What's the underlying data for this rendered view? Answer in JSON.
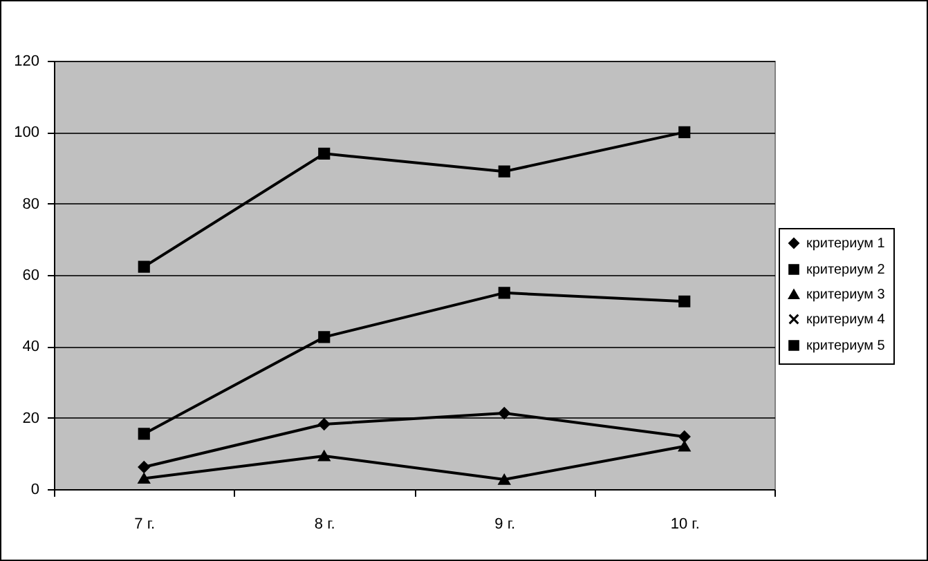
{
  "chart_data": {
    "type": "line",
    "categories": [
      "7 г.",
      "8 г.",
      "9 г.",
      "10 г."
    ],
    "series": [
      {
        "name": "критериум 1",
        "color": "#000000",
        "marker": "diamond",
        "values": [
          6.2,
          18.2,
          21.3,
          14.7
        ]
      },
      {
        "name": "критериум 2",
        "color": "#000000",
        "marker": "square",
        "values": [
          15.5,
          42.6,
          55,
          52.6
        ]
      },
      {
        "name": "критериум 3",
        "color": "#000000",
        "marker": "triangle",
        "values": [
          3,
          9.3,
          2.7,
          12
        ]
      },
      {
        "name": "критериум 4",
        "color": "#000000",
        "marker": "cross",
        "values": [
          null,
          null,
          null,
          null
        ]
      },
      {
        "name": "критериум 5",
        "color": "#000000",
        "marker": "square",
        "values": [
          62.3,
          94,
          89,
          100
        ]
      }
    ],
    "ylim": [
      0,
      120
    ],
    "yticks": [
      0,
      20,
      40,
      60,
      80,
      100,
      120
    ],
    "grid": "y",
    "legend": "right"
  }
}
